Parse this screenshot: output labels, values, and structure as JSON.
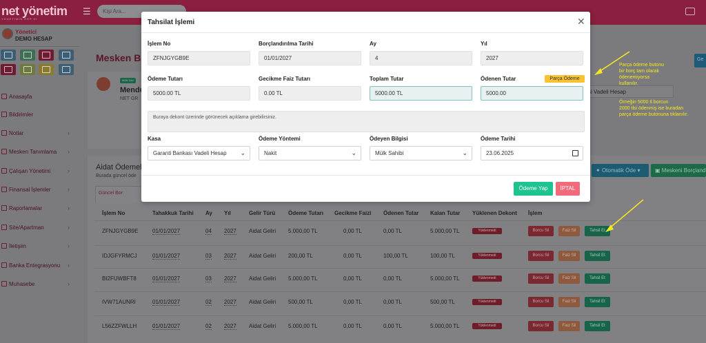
{
  "app": {
    "logo_text": "net yönetim",
    "logo_tagline": "YÖNETİMİN ERP'Sİ",
    "search_placeholder": "Kişi Ara..."
  },
  "user": {
    "role": "Yönetici",
    "name": "DEMO HESAP"
  },
  "sidebar": {
    "items": [
      {
        "label": "Anasayfa",
        "has_arrow": false
      },
      {
        "label": "Bildirimler",
        "has_arrow": false
      },
      {
        "label": "Notlar",
        "has_arrow": true
      },
      {
        "label": "Mesken Tanımlama",
        "has_arrow": true
      },
      {
        "label": "Çalışan Yönetimi",
        "has_arrow": true
      },
      {
        "label": "Finansal İşlemler",
        "has_arrow": true
      },
      {
        "label": "Raporlamalar",
        "has_arrow": true
      },
      {
        "label": "Site/Apartman",
        "has_arrow": true
      },
      {
        "label": "İletişim",
        "has_arrow": true
      },
      {
        "label": "Banka Entegrasyonu",
        "has_arrow": true
      },
      {
        "label": "Muhasebe",
        "has_arrow": true
      }
    ]
  },
  "background": {
    "page_title": "Mesken Bi",
    "owner_badge": "Mülk Sah",
    "owner_name": "Mendu",
    "owner_sub": "NET GR",
    "right_top_button": "Ge",
    "right_input_text": "si Vadeli Hesap",
    "aidat_title": "Aidat Ödemele",
    "aidat_sub": "Burada güncel öde",
    "tab_label": "Güncel Bor",
    "btn_otomatik": "Otomatik Öde",
    "btn_meskeni": "Meskeni Borçland"
  },
  "table": {
    "headers": [
      "İşlem No",
      "Tahakkuk Tarihi",
      "Ay",
      "Yıl",
      "Gelir Türü",
      "Ödeme Tutarı",
      "Gecikme Faizi",
      "Ödenen Tutar",
      "Kalan Tutar",
      "Yüklenen Dekont",
      "İşlem"
    ],
    "rows": [
      {
        "islem_no": "ZFNJGYGB9E",
        "tarih": "01/01/2027",
        "ay": "04",
        "yil": "2027",
        "gelir": "Aidat Geliri",
        "odeme": "5.000,00 TL",
        "faiz": "0,00 TL",
        "odenen": "0,00 TL",
        "kalan": "5.000,00 TL",
        "dekont": "Yüklenmedi"
      },
      {
        "islem_no": "IDJGFYRMCJ",
        "tarih": "01/01/2027",
        "ay": "03",
        "yil": "2027",
        "gelir": "Aidat Geliri",
        "odeme": "200,00 TL",
        "faiz": "0,00 TL",
        "odenen": "100,00 TL",
        "kalan": "100,00 TL",
        "dekont": "Yüklenmedi"
      },
      {
        "islem_no": "BI2FUWBFT8",
        "tarih": "01/01/2027",
        "ay": "03",
        "yil": "2027",
        "gelir": "Aidat Geliri",
        "odeme": "5.000,00 TL",
        "faiz": "0,00 TL",
        "odenen": "0,00 TL",
        "kalan": "5.000,00 TL",
        "dekont": "Yüklenmedi"
      },
      {
        "islem_no": "IVW71AUNRI",
        "tarih": "01/01/2027",
        "ay": "02",
        "yil": "2027",
        "gelir": "Aidat Geliri",
        "odeme": "500,00 TL",
        "faiz": "0,00 TL",
        "odenen": "0,00 TL",
        "kalan": "500,00 TL",
        "dekont": "Yüklenmedi"
      },
      {
        "islem_no": "L56ZZFWLLH",
        "tarih": "01/01/2027",
        "ay": "02",
        "yil": "2027",
        "gelir": "Aidat Geliri",
        "odeme": "5.000,00 TL",
        "faiz": "0,00 TL",
        "odenen": "0,00 TL",
        "kalan": "5.000,00 TL",
        "dekont": "Yüklenmedi"
      }
    ],
    "action_labels": {
      "borcu_sil": "Borcu Sil",
      "faiz_sil": "Faiz Sil",
      "tahsil_et": "Tahsil Et"
    }
  },
  "annotation": {
    "lines1": [
      "Parça ödeme butonu",
      "bir borç tam olarak",
      "ödenemiyorsa",
      "kullanılır."
    ],
    "lines2": [
      "Örneğin 5000 tl borcun",
      "2000 tlsi ödenmiş ise buradan",
      "parça ödeme butonuna tıklanılır."
    ]
  },
  "modal": {
    "title": "Tahsilat İşlemi",
    "fields": {
      "islem_no": {
        "label": "İşlem No",
        "value": "ZFNJGYGB9E"
      },
      "borclandirilma_tarihi": {
        "label": "Borçlandırılma Tarihi",
        "value": "01/01/2027"
      },
      "ay": {
        "label": "Ay",
        "value": "4"
      },
      "yil": {
        "label": "Yıl",
        "value": "2027"
      },
      "odeme_tutari": {
        "label": "Ödeme Tutarı",
        "value": "5000.00 TL"
      },
      "gecikme_faiz": {
        "label": "Gecikme Faiz Tutarı",
        "value": "0.00 TL"
      },
      "toplam_tutar": {
        "label": "Toplam Tutar",
        "value": "5000.00 TL"
      },
      "odenen_tutar": {
        "label": "Ödenen Tutar",
        "value": "5000.00"
      }
    },
    "parca_odeme_label": "Parça Ödeme",
    "description_placeholder": "Buraya dekont üzerinde görünecek açıklama girebilirsiniz.",
    "kasa": {
      "label": "Kasa",
      "value": "Garanti Bankası Vadeli Hesap"
    },
    "odeme_yontemi": {
      "label": "Ödeme Yöntemi",
      "value": "Nakit"
    },
    "odeyen_bilgisi": {
      "label": "Ödeyen Bilgisi",
      "value": "Mülk Sahibi"
    },
    "odeme_tarihi": {
      "label": "Ödeme Tarihi",
      "value": "23.06.2025"
    },
    "btn_odeme_yap": "Ödeme Yap",
    "btn_iptal": "İPTAL"
  },
  "colors": {
    "topbar": "#8a1f3f",
    "accent_green": "#1ec490",
    "cancel_red": "#f26b7a",
    "parca_yellow": "#fbc233",
    "annotation_yellow": "#f3e81f"
  }
}
